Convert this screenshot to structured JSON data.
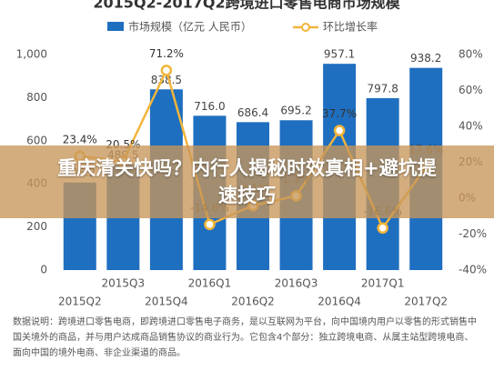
{
  "chart_data": {
    "type": "combo",
    "title": "2015Q2-2017Q2跨境进口零售电商市场规模",
    "categories": [
      "2015Q2",
      "2015Q3",
      "2015Q4",
      "2016Q1",
      "2016Q2",
      "2016Q3",
      "2016Q4",
      "2017Q1",
      "2017Q2"
    ],
    "series": [
      {
        "name": "市场规模（亿元 人民币）",
        "type": "bar",
        "color": "#1f6fc0",
        "values": [
          406.2,
          489.5,
          838.5,
          716.0,
          686.4,
          695.2,
          957.1,
          797.8,
          938.2
        ],
        "value_labels": [
          "406.2",
          "489.5",
          "838.5",
          "716.0",
          "686.4",
          "695.2",
          "957.1",
          "797.8",
          "938.2"
        ]
      },
      {
        "name": "环比增长率",
        "type": "line",
        "axis": "y2",
        "color": "#f2b53a",
        "values": [
          23.4,
          20.5,
          71.2,
          -14.6,
          -4.1,
          1.3,
          37.7,
          -16.6,
          17.6
        ],
        "value_labels": [
          "23.4%",
          "20.5%",
          "71.2%",
          "-14.6%",
          "-4.1%",
          "1.3%",
          "37.7%",
          "-16.6%",
          "17.6%"
        ]
      }
    ],
    "ylim": [
      0,
      1000
    ],
    "yticks": [
      0,
      200,
      400,
      600,
      800,
      {
        "value": 1000,
        "label": "1,000"
      }
    ],
    "y2lim": [
      -40,
      80
    ],
    "y2ticks": [
      {
        "value": -40,
        "label": "-40%"
      },
      {
        "value": -20,
        "label": "-20%"
      },
      {
        "value": 0,
        "label": "0%"
      },
      {
        "value": 20,
        "label": "20%"
      },
      {
        "value": 40,
        "label": "40%"
      },
      {
        "value": 60,
        "label": "60%"
      },
      {
        "value": 80,
        "label": "80%"
      }
    ],
    "grid": false
  },
  "footnote": "数据说明：跨境进口零售电商，即跨境进口零售电子商务，是以互联网为平台，向中国境内用户以零售的形式销售中国关境外的商品，并与用户达成商品销售协议的商业行为。它包含4个部分：独立跨境电商、从属主站型跨境电商、面向中国的境外电商、非企业渠道的商品。",
  "overlay": {
    "headline": "重庆清关快吗？内行人揭秘时效真相+避坑提速技巧"
  }
}
